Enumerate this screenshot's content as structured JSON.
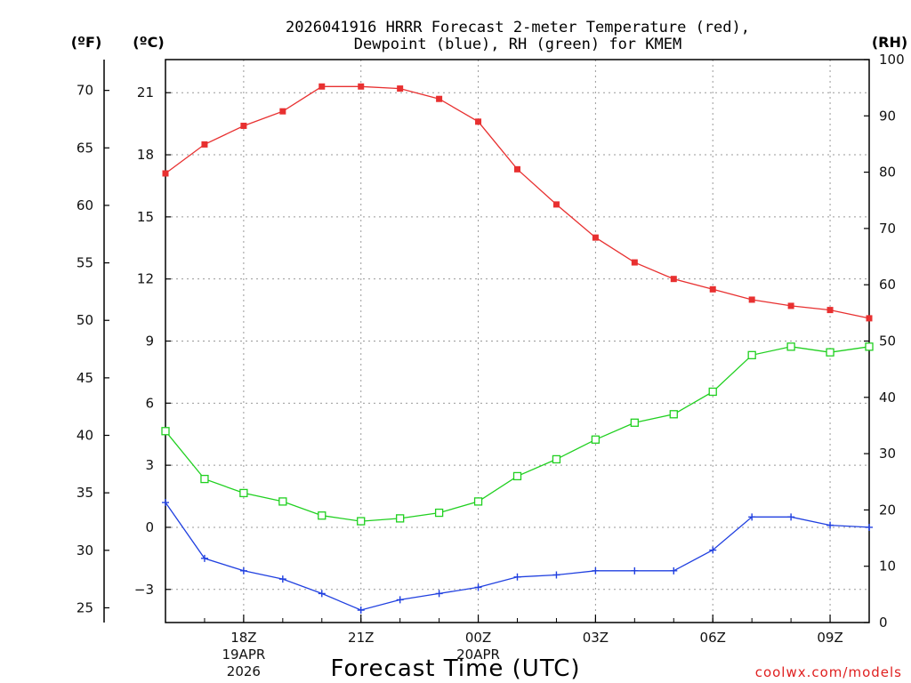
{
  "chart_data": {
    "type": "line",
    "title_line1": "2026041916 HRRR Forecast 2-meter Temperature (red),",
    "title_line2": "Dewpoint (blue), RH (green) for KMEM",
    "xlabel": "Forecast Time (UTC)",
    "left_outer_unit": "(ºF)",
    "left_inner_unit": "(ºC)",
    "right_unit": "(RH)",
    "credit": "coolwx.com/models",
    "hours": [
      16,
      17,
      18,
      19,
      20,
      21,
      22,
      23,
      24,
      25,
      26,
      27,
      28,
      29,
      30,
      31,
      32,
      33,
      34
    ],
    "x_ticks": [
      {
        "hour": 18,
        "lines": [
          "18Z",
          "19APR",
          "2026"
        ]
      },
      {
        "hour": 21,
        "lines": [
          "21Z"
        ]
      },
      {
        "hour": 24,
        "lines": [
          "00Z",
          "20APR"
        ]
      },
      {
        "hour": 27,
        "lines": [
          "03Z"
        ]
      },
      {
        "hour": 30,
        "lines": [
          "06Z"
        ]
      },
      {
        "hour": 33,
        "lines": [
          "09Z"
        ]
      }
    ],
    "celsius_ticks": [
      -3,
      0,
      3,
      6,
      9,
      12,
      15,
      18,
      21
    ],
    "fahrenheit_ticks": [
      25,
      30,
      35,
      40,
      45,
      50,
      55,
      60,
      65,
      70
    ],
    "rh_ticks": [
      0,
      10,
      20,
      30,
      40,
      50,
      60,
      70,
      80,
      90,
      100
    ],
    "celsius_range": [
      -4.6,
      22.6
    ],
    "rh_range": [
      0,
      100
    ],
    "series": [
      {
        "name": "Temperature",
        "unit": "C",
        "color": "#e83030",
        "marker": "filled-square",
        "values": [
          17.1,
          18.5,
          19.4,
          20.1,
          21.3,
          21.3,
          21.2,
          20.7,
          19.6,
          17.3,
          15.6,
          14.0,
          12.8,
          12.0,
          11.5,
          11.0,
          10.7,
          10.5,
          10.1
        ]
      },
      {
        "name": "Dewpoint",
        "unit": "C",
        "color": "#2040e0",
        "marker": "plus",
        "values": [
          1.2,
          -1.5,
          -2.1,
          -2.5,
          -3.2,
          -4.0,
          -3.5,
          -3.2,
          -2.9,
          -2.4,
          -2.3,
          -2.1,
          -2.1,
          -2.1,
          -1.1,
          0.5,
          0.5,
          0.1,
          0.0
        ]
      },
      {
        "name": "RH",
        "unit": "%",
        "color": "#20d020",
        "marker": "open-square",
        "values": [
          34,
          25.5,
          23,
          21.5,
          19,
          18,
          18.5,
          19.5,
          21.5,
          26,
          29,
          32.5,
          35.5,
          37,
          41,
          47.5,
          49,
          48,
          49
        ]
      }
    ]
  }
}
